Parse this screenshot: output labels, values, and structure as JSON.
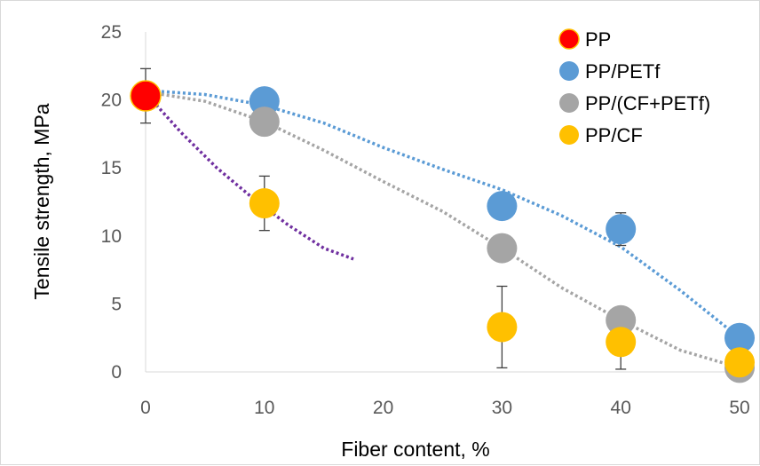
{
  "chart_data": {
    "type": "scatter",
    "title": "",
    "xlabel": "Fiber content, %",
    "ylabel": "Tensile strength, MPa",
    "xlim": [
      0,
      50
    ],
    "ylim": [
      0,
      25
    ],
    "x_ticks": [
      "0",
      "10",
      "20",
      "30",
      "40",
      "50"
    ],
    "y_ticks": [
      "0",
      "5",
      "10",
      "15",
      "20",
      "25"
    ],
    "grid": false,
    "legend_position": "top-right",
    "series": [
      {
        "name": "PP",
        "color": "#ff0000",
        "points": [
          {
            "x": 0,
            "y": 20.3,
            "err": 2.0
          }
        ]
      },
      {
        "name": "PP/PETf",
        "color": "#5b9bd5",
        "points": [
          {
            "x": 10,
            "y": 19.9
          },
          {
            "x": 30,
            "y": 12.2
          },
          {
            "x": 40,
            "y": 10.5,
            "err": 1.2
          },
          {
            "x": 50,
            "y": 2.5
          }
        ]
      },
      {
        "name": "PP/(CF+PETf)",
        "color": "#a5a5a5",
        "points": [
          {
            "x": 10,
            "y": 18.4
          },
          {
            "x": 30,
            "y": 9.1
          },
          {
            "x": 40,
            "y": 3.8
          },
          {
            "x": 50,
            "y": 0.3
          }
        ]
      },
      {
        "name": "PP/CF",
        "color": "#ffc000",
        "points": [
          {
            "x": 10,
            "y": 12.4,
            "err": 2.0
          },
          {
            "x": 30,
            "y": 3.3,
            "err": 3.0
          },
          {
            "x": 40,
            "y": 2.2,
            "err": 2.0
          },
          {
            "x": 50,
            "y": 0.7
          }
        ]
      }
    ],
    "trendlines": [
      {
        "color": "#7030a0",
        "x": [
          0,
          3,
          6,
          9,
          12,
          15,
          17.5
        ],
        "y": [
          20.5,
          17.6,
          15.0,
          12.8,
          10.8,
          9.1,
          8.3
        ]
      },
      {
        "color": "#5b9bd5",
        "x": [
          0,
          5,
          10,
          15,
          20,
          25,
          30,
          35,
          40,
          45,
          50
        ],
        "y": [
          20.7,
          20.4,
          19.6,
          18.3,
          16.5,
          14.9,
          13.4,
          11.5,
          9.2,
          6.0,
          2.5
        ]
      },
      {
        "color": "#a5a5a5",
        "x": [
          0,
          5,
          10,
          15,
          20,
          25,
          30,
          35,
          40,
          45,
          50
        ],
        "y": [
          20.6,
          19.9,
          18.4,
          16.3,
          14.0,
          11.8,
          9.1,
          6.2,
          3.8,
          1.6,
          0.3
        ]
      }
    ]
  }
}
